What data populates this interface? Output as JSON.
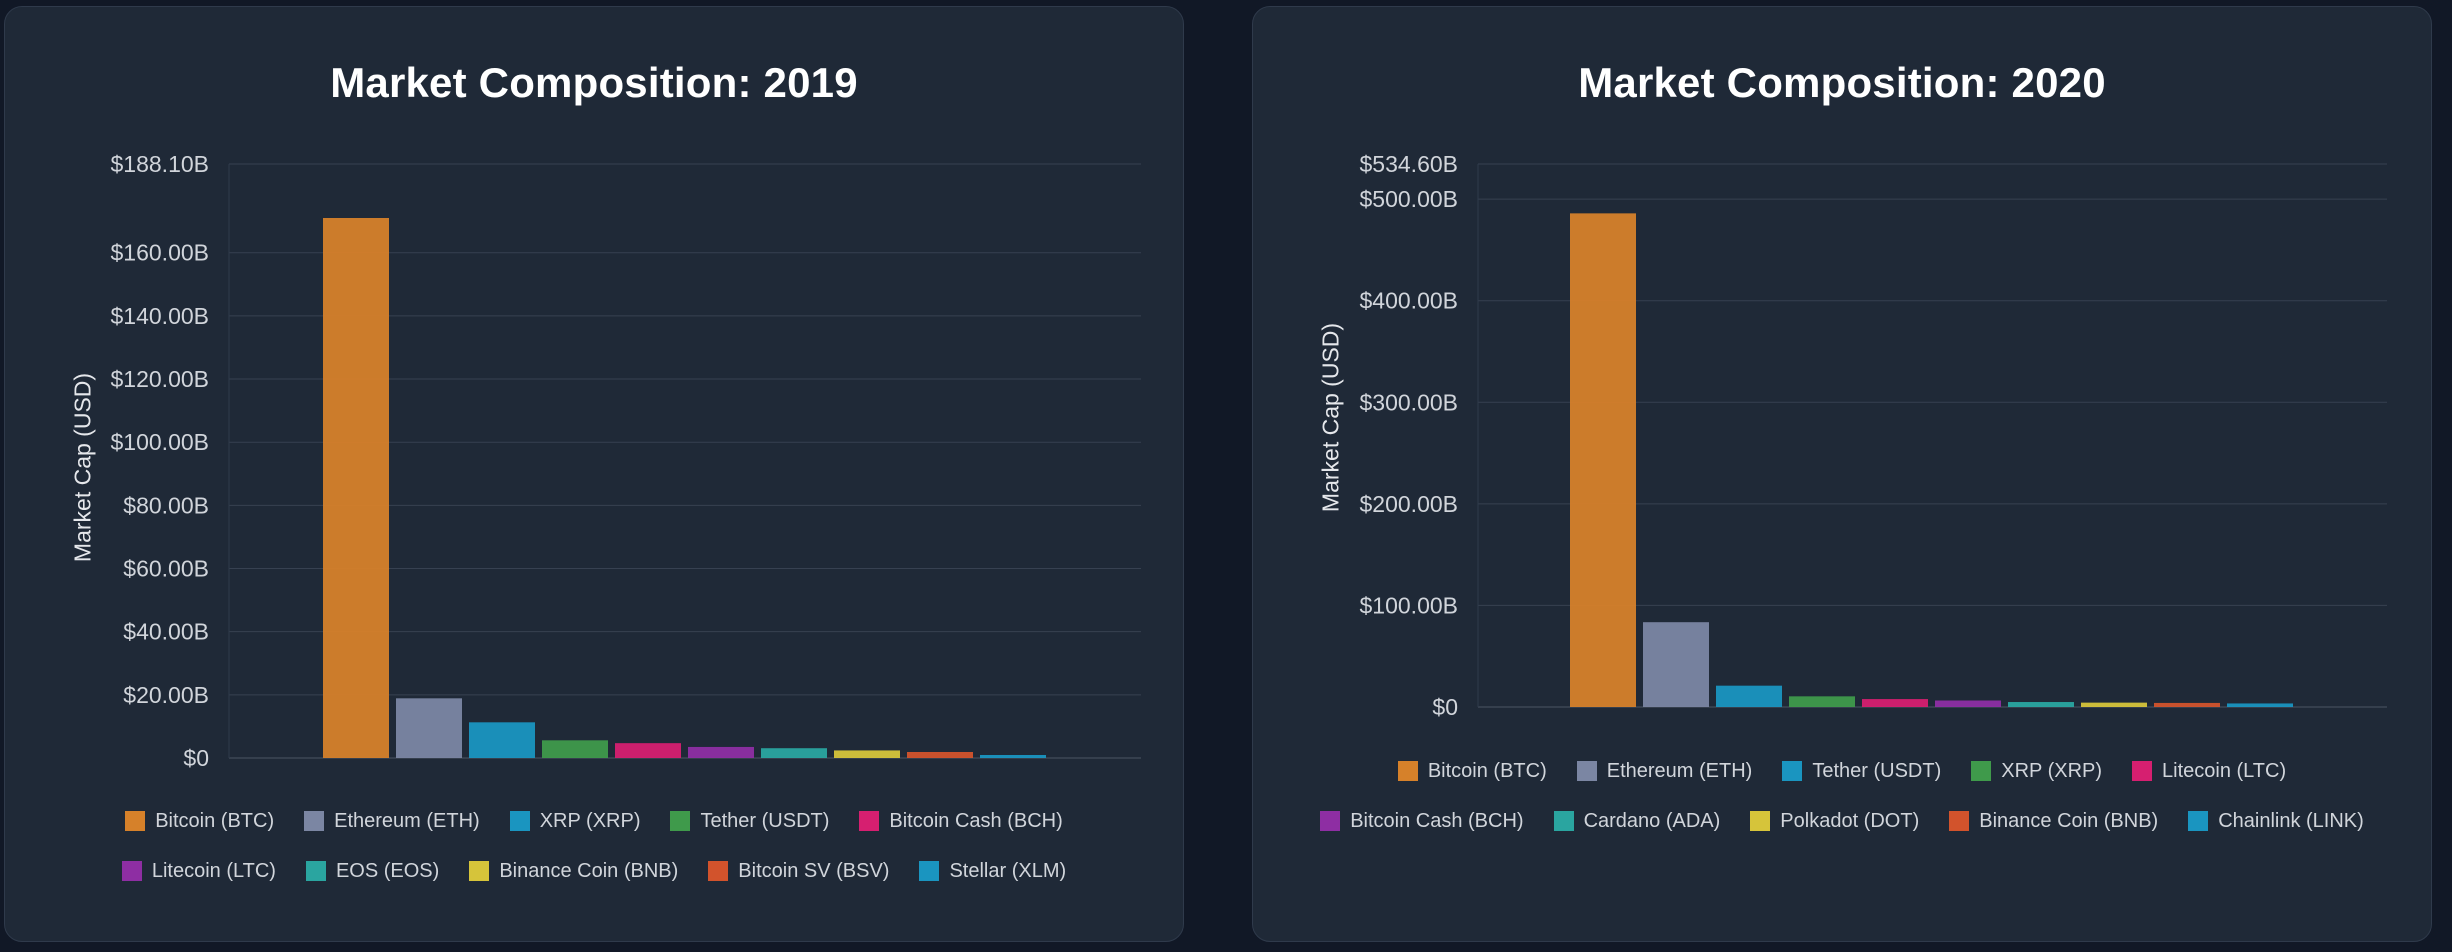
{
  "chart_data": [
    {
      "type": "bar",
      "title": "Market Composition: 2019",
      "ylabel": "Market Cap (USD)",
      "xlabel": "",
      "ylim": [
        0,
        188.1
      ],
      "yticks": [
        0,
        20,
        40,
        60,
        80,
        100,
        120,
        140,
        160,
        188.1
      ],
      "ytick_labels": [
        "$0",
        "$20.00B",
        "$40.00B",
        "$60.00B",
        "$80.00B",
        "$100.00B",
        "$120.00B",
        "$140.00B",
        "$160.00B",
        "$188.10B"
      ],
      "categories": [
        "Bitcoin (BTC)",
        "Ethereum (ETH)",
        "XRP (XRP)",
        "Tether (USDT)",
        "Bitcoin Cash (BCH)",
        "Litecoin (LTC)",
        "EOS (EOS)",
        "Binance Coin (BNB)",
        "Bitcoin SV (BSV)",
        "Stellar (XLM)"
      ],
      "values": [
        171.0,
        18.9,
        11.3,
        5.6,
        4.7,
        3.5,
        3.1,
        2.4,
        1.9,
        0.9
      ],
      "colors": [
        "#d6812a",
        "#7b86a3",
        "#1a95c0",
        "#3f9a4b",
        "#d61f70",
        "#8e2ea3",
        "#2aa5a0",
        "#d6c43a",
        "#d2532c",
        "#1a95c0"
      ],
      "grid": true,
      "legend": "bottom"
    },
    {
      "type": "bar",
      "title": "Market Composition: 2020",
      "ylabel": "Market Cap (USD)",
      "xlabel": "",
      "ylim": [
        0,
        534.6
      ],
      "yticks": [
        0,
        100,
        200,
        300,
        400,
        500,
        534.6
      ],
      "ytick_labels": [
        "$0",
        "$100.00B",
        "$200.00B",
        "$300.00B",
        "$400.00B",
        "$500.00B",
        "$534.60B"
      ],
      "categories": [
        "Bitcoin (BTC)",
        "Ethereum (ETH)",
        "Tether (USDT)",
        "XRP (XRP)",
        "Litecoin (LTC)",
        "Bitcoin Cash (BCH)",
        "Cardano (ADA)",
        "Polkadot (DOT)",
        "Binance Coin (BNB)",
        "Chainlink (LINK)"
      ],
      "values": [
        486.0,
        83.5,
        21.0,
        10.5,
        7.8,
        6.4,
        4.9,
        4.3,
        4.0,
        3.5
      ],
      "colors": [
        "#d6812a",
        "#7b86a3",
        "#1a95c0",
        "#3f9a4b",
        "#d61f70",
        "#8e2ea3",
        "#2aa5a0",
        "#d6c43a",
        "#d2532c",
        "#1a95c0"
      ],
      "grid": true,
      "legend": "bottom"
    }
  ]
}
